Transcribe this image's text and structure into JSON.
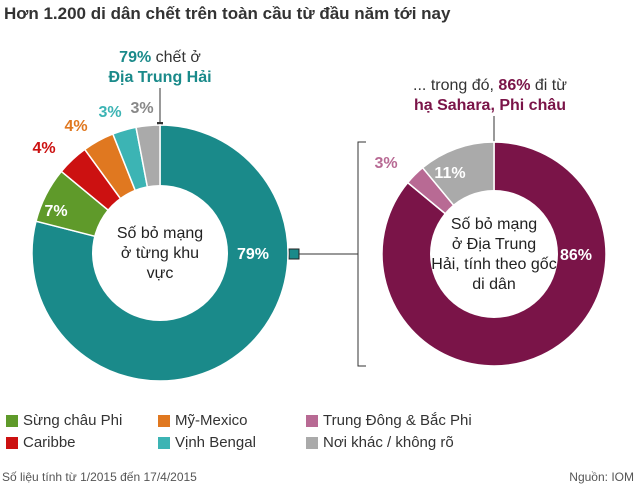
{
  "title": "Hơn 1.200 di dân chết trên toàn cầu từ đầu năm tới nay",
  "left_annotation": {
    "percent": "79%",
    "text": " chết ở",
    "place": "Địa Trung Hải"
  },
  "right_annotation": {
    "prefix": "... trong đó, ",
    "percent": "86%",
    "text": " đi từ",
    "place": "hạ Sahara, Phi châu"
  },
  "footer": {
    "note": "Số liệu tính từ 1/2015 đến 17/4/2015",
    "source": "Nguồn: IOM"
  },
  "colors": {
    "teal": "#1a8a8a",
    "green": "#5f9a2a",
    "red": "#cc1111",
    "orange": "#e07820",
    "cyan": "#3cb4b4",
    "gray": "#aaaaaa",
    "maroon": "#7a1448",
    "pink": "#b86a94"
  },
  "chart_data": [
    {
      "type": "pie",
      "center_label": "Số bỏ mạng ở từng khu vực",
      "slices": [
        {
          "label": "Địa Trung Hải",
          "value": 79,
          "value_label": "79%",
          "color": "#1a8a8a"
        },
        {
          "label": "Sừng châu Phi",
          "value": 7,
          "value_label": "7%",
          "color": "#5f9a2a"
        },
        {
          "label": "Caribbe",
          "value": 4,
          "value_label": "4%",
          "color": "#cc1111"
        },
        {
          "label": "Mỹ-Mexico",
          "value": 4,
          "value_label": "4%",
          "color": "#e07820"
        },
        {
          "label": "Vịnh Bengal",
          "value": 3,
          "value_label": "3%",
          "color": "#3cb4b4"
        },
        {
          "label": "Nơi khác / không rõ",
          "value": 3,
          "value_label": "3%",
          "color": "#aaaaaa"
        }
      ]
    },
    {
      "type": "pie",
      "center_label": "Số bỏ mạng ở Địa Trung Hải, tính theo gốc di dân",
      "slices": [
        {
          "label": "hạ Sahara, Phi châu",
          "value": 86,
          "value_label": "86%",
          "color": "#7a1448"
        },
        {
          "label": "Trung Đông & Bắc Phi",
          "value": 3,
          "value_label": "3%",
          "color": "#b86a94"
        },
        {
          "label": "Nơi khác / không rõ",
          "value": 11,
          "value_label": "11%",
          "color": "#aaaaaa"
        }
      ]
    }
  ],
  "legend": [
    {
      "label": "Sừng châu Phi",
      "color": "#5f9a2a"
    },
    {
      "label": "Mỹ-Mexico",
      "color": "#e07820"
    },
    {
      "label": "Trung Đông & Bắc Phi",
      "color": "#b86a94"
    },
    {
      "label": "Caribbe",
      "color": "#cc1111"
    },
    {
      "label": "Vịnh Bengal",
      "color": "#3cb4b4"
    },
    {
      "label": "Nơi khác / không rõ",
      "color": "#aaaaaa"
    }
  ]
}
